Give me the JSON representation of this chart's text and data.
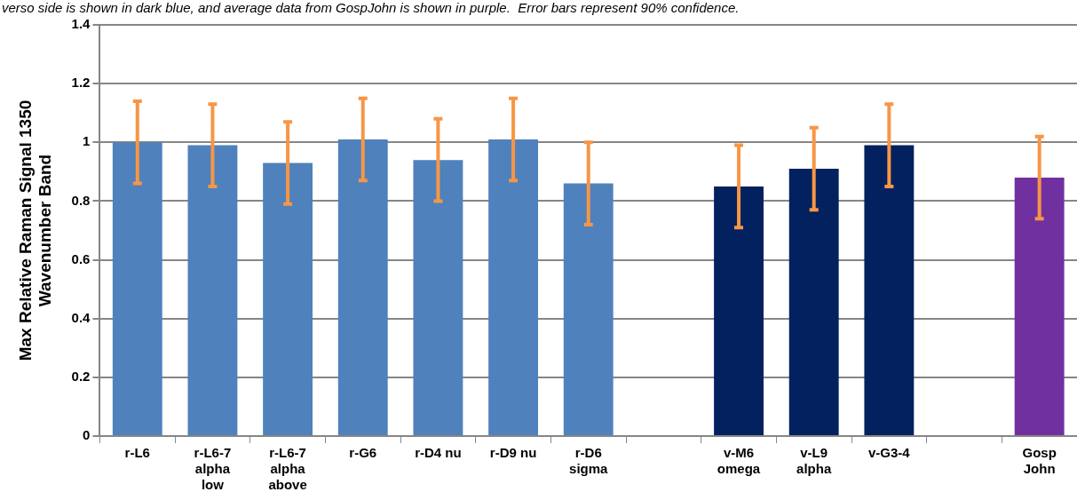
{
  "chart_data": {
    "type": "bar",
    "annotations": [
      "verso side is shown in dark blue, and average data from GospJohn is shown in purple.  Error bars represent 90% confidence."
    ],
    "ylabel": "Max Relative Raman Signal 1350\nWavenumber Band",
    "categories": [
      "r-L6",
      "r-L6-7\nalpha\nlow",
      "r-L6-7\nalpha\nabove",
      "r-G6",
      "r-D4 nu",
      "r-D9 nu",
      "r-D6\nsigma",
      null,
      "v-M6\nomega",
      "v-L9\nalpha",
      "v-G3-4",
      null,
      "Gosp\nJohn"
    ],
    "values": [
      1.0,
      0.99,
      0.93,
      1.01,
      0.94,
      1.01,
      0.86,
      null,
      0.85,
      0.91,
      0.99,
      null,
      0.88
    ],
    "errors": [
      0.14,
      0.14,
      0.14,
      0.14,
      0.14,
      0.14,
      0.14,
      null,
      0.14,
      0.14,
      0.14,
      null,
      0.14
    ],
    "colors": [
      "#4f81bd",
      "#4f81bd",
      "#4f81bd",
      "#4f81bd",
      "#4f81bd",
      "#4f81bd",
      "#4f81bd",
      "#4f81bd",
      "#03215e",
      "#03215e",
      "#03215e",
      "#03215e",
      "#7030a0"
    ],
    "ylim": [
      0,
      1.4
    ],
    "yticks": [
      0,
      0.2,
      0.4,
      0.6,
      0.8,
      1,
      1.2,
      1.4
    ],
    "grid": "y",
    "legend": false
  }
}
